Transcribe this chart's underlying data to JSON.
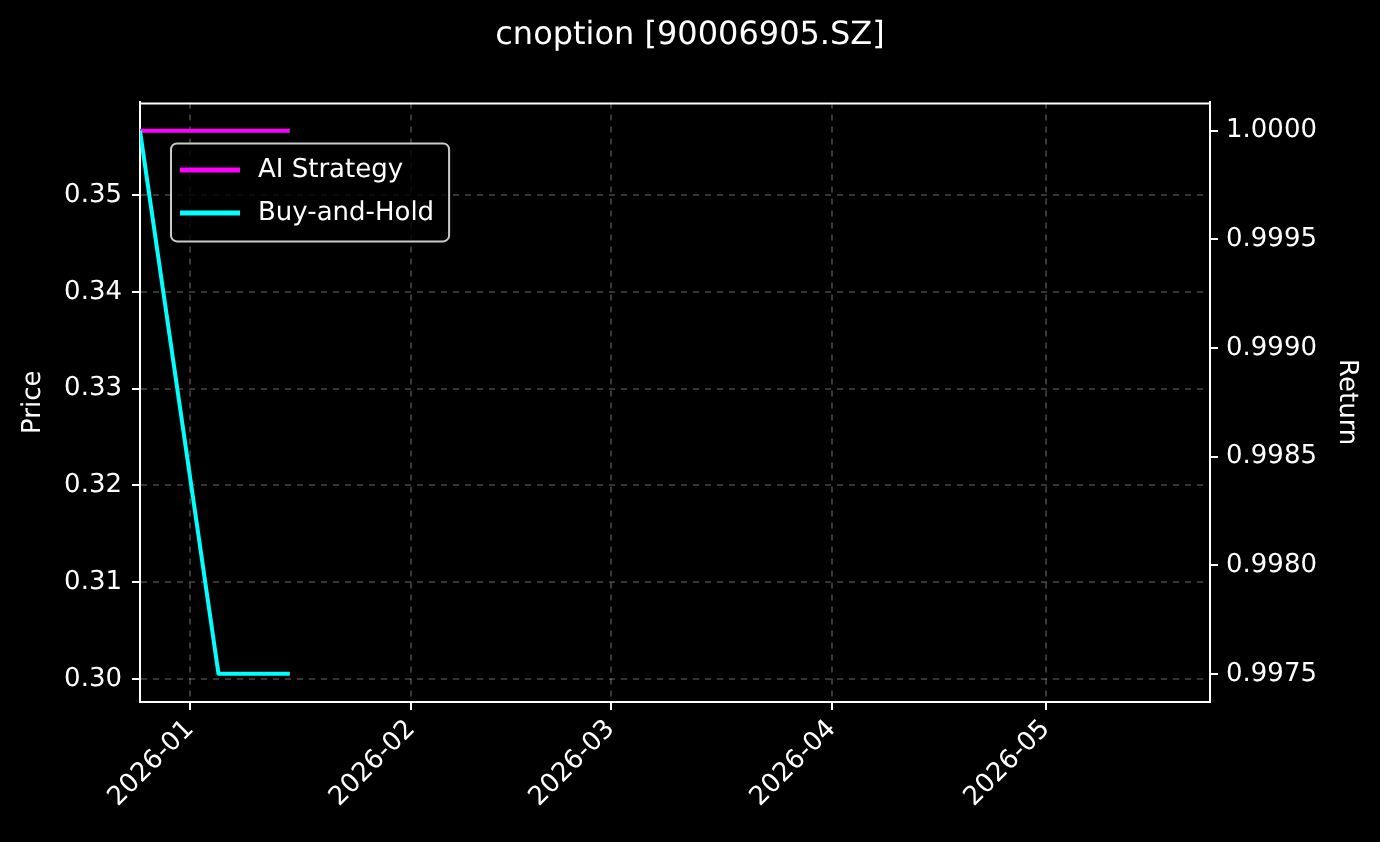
{
  "chart_data": {
    "type": "line",
    "title": "cnoption [90006905.SZ]",
    "ylabel": "Price",
    "y2label": "Return",
    "x": [
      "2025-12-25",
      "2026-01-05",
      "2026-01-15"
    ],
    "series": [
      {
        "name": "AI Strategy",
        "color": "#ff00ff",
        "values": [
          1,
          1,
          1
        ],
        "axis": "y2"
      },
      {
        "name": "Buy-and-Hold",
        "color": "#00ffff",
        "values": [
          1,
          0.9975,
          0.9975
        ],
        "axis": "y2"
      }
    ],
    "xlim": [
      "2025-12-25",
      "2026-05-24"
    ],
    "xticks": [
      {
        "value": "2026-01-01",
        "label": "2026-01"
      },
      {
        "value": "2026-02-01",
        "label": "2026-02"
      },
      {
        "value": "2026-03-01",
        "label": "2026-03"
      },
      {
        "value": "2026-04-01",
        "label": "2026-04"
      },
      {
        "value": "2026-05-01",
        "label": "2026-05"
      }
    ],
    "ylim": [
      0.2976,
      0.3596
    ],
    "yticks": [
      {
        "value": 0.3,
        "label": "0.30"
      },
      0.31,
      0.32,
      0.33,
      0.34,
      0.35
    ],
    "y2lim": [
      0.99737,
      1.00013
    ],
    "y2ticks": [
      {
        "value": 0.9975,
        "label": "0.9975"
      },
      {
        "value": 0.998,
        "label": "0.9980"
      },
      0.9985,
      {
        "value": 0.999,
        "label": "0.9990"
      },
      0.9995,
      {
        "value": 1,
        "label": "1.0000"
      }
    ],
    "grid": true,
    "legend": "top left"
  }
}
